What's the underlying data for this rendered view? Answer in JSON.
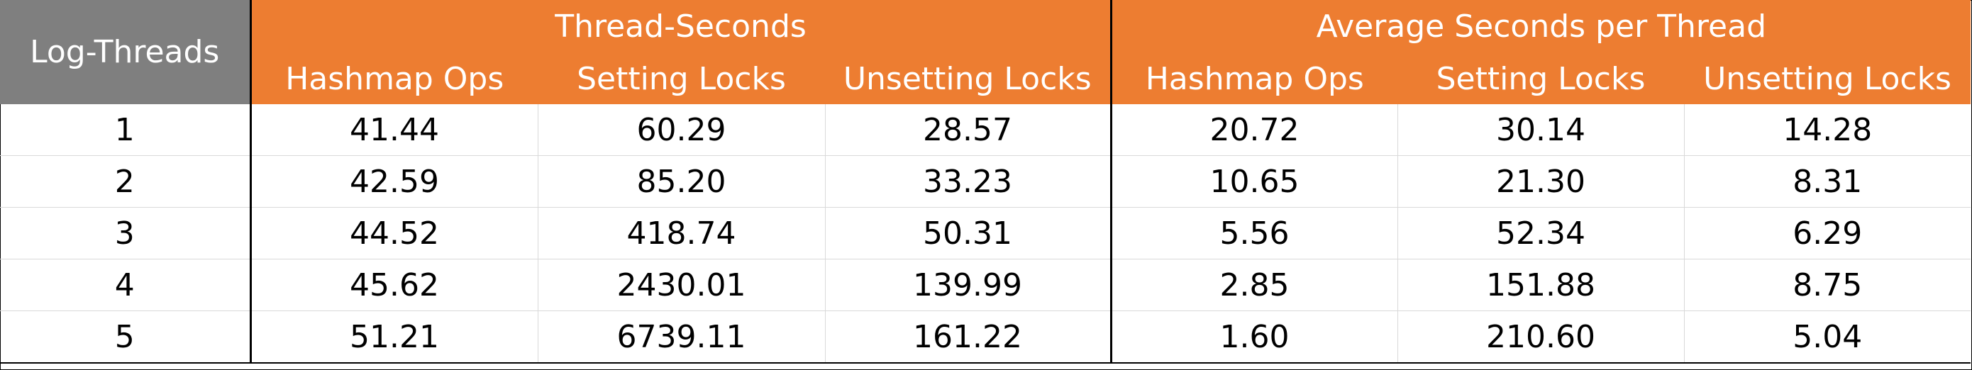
{
  "table": {
    "corner_header": "Log-Threads",
    "groups": [
      "Thread-Seconds",
      "Average Seconds per Thread"
    ],
    "subheaders": [
      "Hashmap Ops",
      "Setting Locks",
      "Unsetting Locks",
      "Hashmap Ops",
      "Setting Locks",
      "Unsetting Locks"
    ],
    "rows": [
      [
        "1",
        "41.44",
        "60.29",
        "28.57",
        "20.72",
        "30.14",
        "14.28"
      ],
      [
        "2",
        "42.59",
        "85.20",
        "33.23",
        "10.65",
        "21.30",
        "8.31"
      ],
      [
        "3",
        "44.52",
        "418.74",
        "50.31",
        "5.56",
        "52.34",
        "6.29"
      ],
      [
        "4",
        "45.62",
        "2430.01",
        "139.99",
        "2.85",
        "151.88",
        "8.75"
      ],
      [
        "5",
        "51.21",
        "6739.11",
        "161.22",
        "1.60",
        "210.60",
        "5.04"
      ]
    ],
    "colors": {
      "header_accent": "#ed7d31",
      "corner_header": "#7f7f7f",
      "header_text": "#ffffff"
    }
  }
}
